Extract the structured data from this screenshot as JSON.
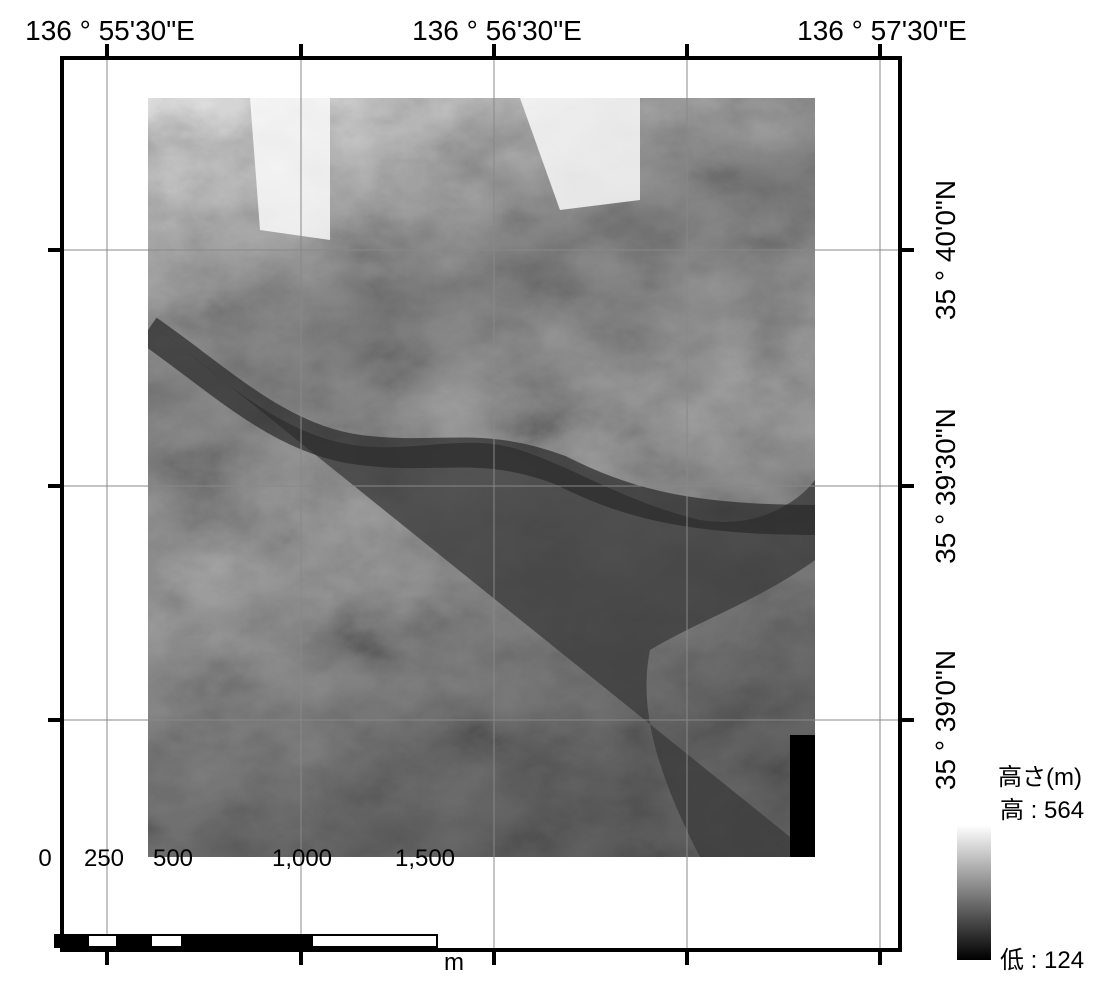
{
  "map": {
    "top_labels": [
      "136 ° 55'30\"E",
      "136 ° 56'30\"E",
      "136 ° 57'30\"E"
    ],
    "right_labels": [
      "35 ° 40'0\"N",
      "35 ° 39'30\"N",
      "35 ° 39'0\"N"
    ]
  },
  "legend": {
    "title": "高さ(m)",
    "high": "高 : 564",
    "low": "低 : 124"
  },
  "scale_bar": {
    "labels": [
      "0",
      "250",
      "500",
      "1,000",
      "1,500"
    ],
    "unit": "m"
  }
}
